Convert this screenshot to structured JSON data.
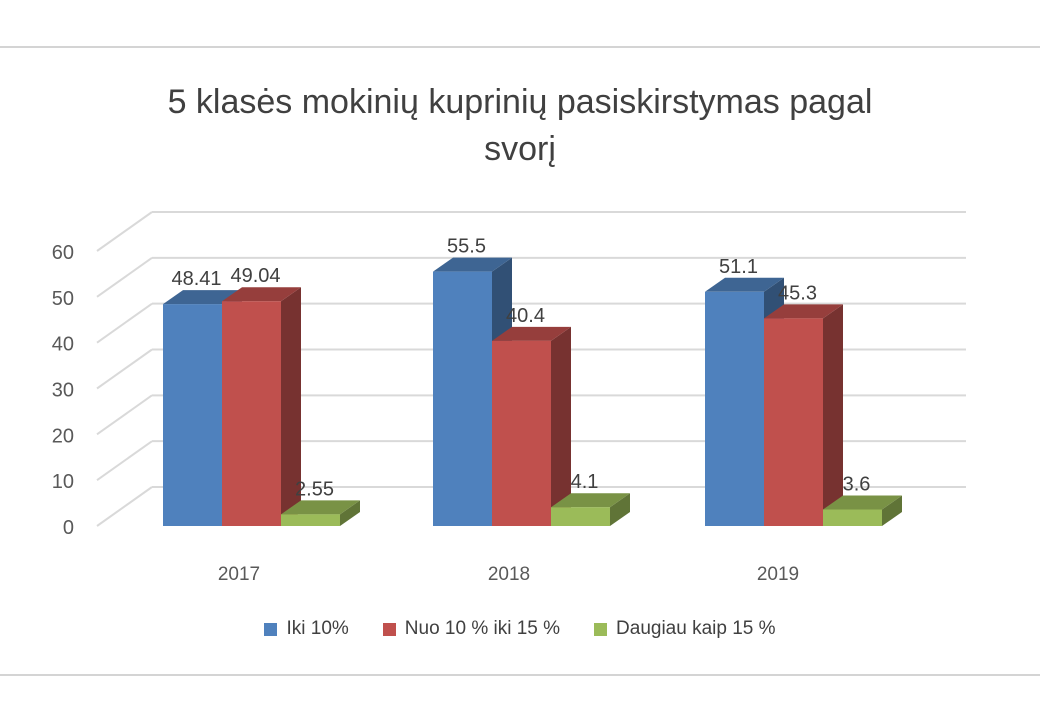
{
  "chart_data": {
    "type": "bar",
    "title_line1": "5 klasės mokinių kuprinių pasiskirstymas pagal",
    "title_line2": "svorį",
    "categories": [
      "2017",
      "2018",
      "2019"
    ],
    "series": [
      {
        "name": "Iki 10%",
        "values": [
          48.41,
          55.5,
          51.1
        ],
        "labels": [
          "48.41",
          "55.5",
          "51.1"
        ],
        "color": "#4f81bd"
      },
      {
        "name": "Nuo 10 % iki 15 %",
        "values": [
          49.04,
          40.4,
          45.3
        ],
        "labels": [
          "49.04",
          "40.4",
          "45.3"
        ],
        "color": "#c0504d"
      },
      {
        "name": "Daugiau kaip 15 %",
        "values": [
          2.55,
          4.1,
          3.6
        ],
        "labels": [
          "2.55",
          "4.1",
          "3.6"
        ],
        "color": "#9bbb59"
      }
    ],
    "yticks": [
      "0",
      "10",
      "20",
      "30",
      "40",
      "50",
      "60"
    ],
    "ylim": [
      0,
      60
    ],
    "grid": true,
    "legend_position": "bottom",
    "style": "3d-clustered-column"
  }
}
